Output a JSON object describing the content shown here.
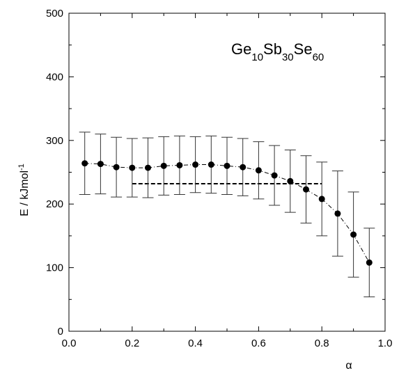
{
  "chart_data": {
    "type": "scatter",
    "title": "",
    "annotation": {
      "parts": [
        {
          "text": "Ge",
          "sub": false
        },
        {
          "text": "10",
          "sub": true
        },
        {
          "text": "Sb",
          "sub": false
        },
        {
          "text": "30",
          "sub": true
        },
        {
          "text": "Se",
          "sub": false
        },
        {
          "text": "60",
          "sub": true
        }
      ]
    },
    "xlabel": "α",
    "ylabel": "E / kJmol",
    "ylabel_sup": "-1",
    "xlim": [
      0.0,
      1.0
    ],
    "ylim": [
      0,
      500
    ],
    "x_ticks": [
      "0.0",
      "0.2",
      "0.4",
      "0.6",
      "0.8",
      "1.0"
    ],
    "y_ticks": [
      "0",
      "100",
      "200",
      "300",
      "400",
      "500"
    ],
    "grid": false,
    "legend": "none",
    "series": [
      {
        "x": [
          0.05,
          0.1,
          0.15,
          0.2,
          0.25,
          0.3,
          0.35,
          0.4,
          0.45,
          0.5,
          0.55,
          0.6,
          0.65,
          0.7,
          0.75,
          0.8,
          0.85,
          0.9,
          0.95
        ],
        "y": [
          264,
          263,
          258,
          257,
          257,
          260,
          261,
          262,
          262,
          260,
          258,
          253,
          245,
          236,
          223,
          208,
          185,
          152,
          108
        ],
        "err": [
          49,
          47,
          47,
          46,
          47,
          46,
          46,
          44,
          45,
          45,
          45,
          45,
          47,
          49,
          53,
          58,
          67,
          67,
          54
        ],
        "marker": "filled-circle",
        "line": "dash-dot",
        "color": "#000000"
      }
    ],
    "reference_line": {
      "x_start": 0.2,
      "x_end": 0.8,
      "y": 232,
      "style": "dashed"
    }
  }
}
